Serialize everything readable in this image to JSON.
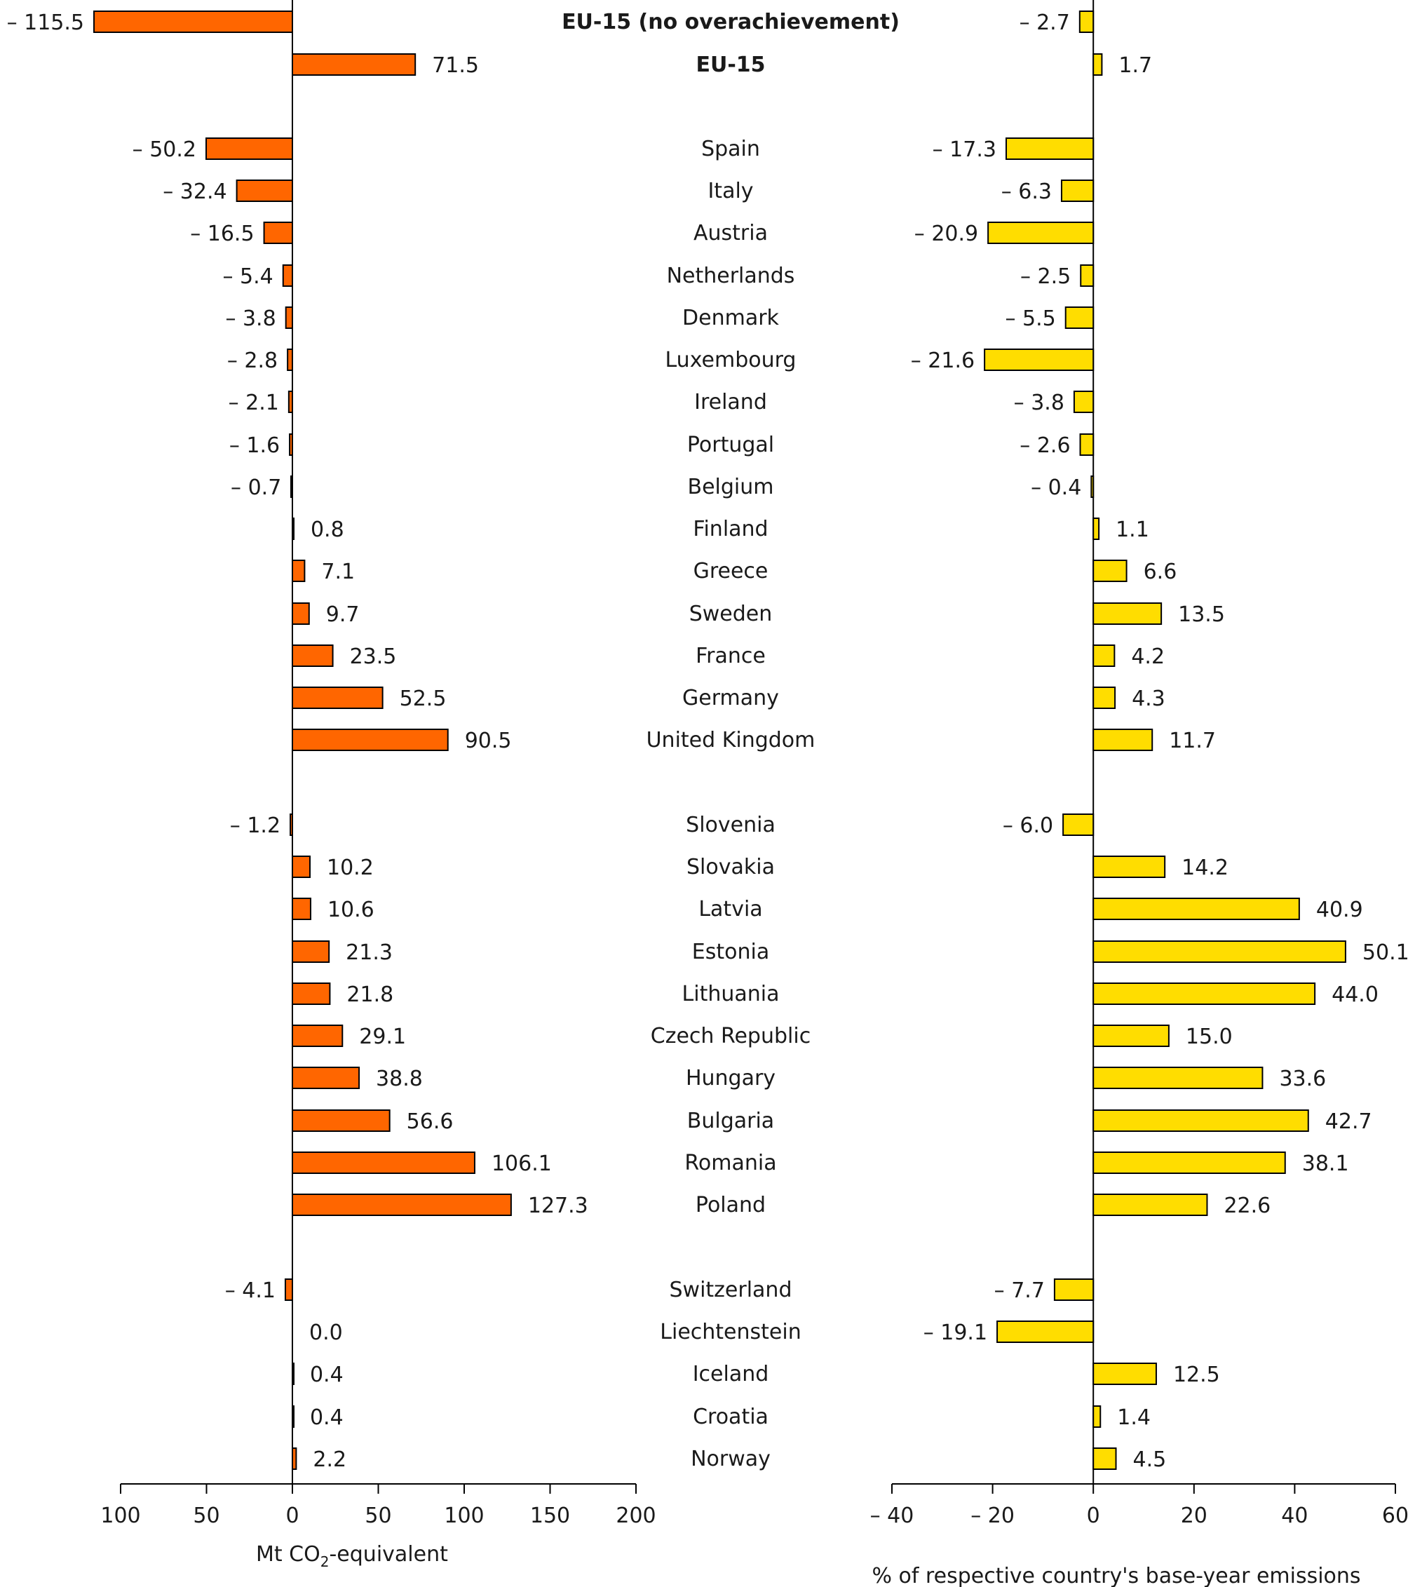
{
  "chart_data": [
    {
      "type": "bar",
      "orientation": "horizontal",
      "xlabel": "Mt CO2-equivalent",
      "xlim": [
        -100,
        200
      ],
      "xticks": [
        -100,
        -50,
        0,
        50,
        100,
        150,
        200
      ],
      "xtick_labels": [
        "100",
        "50",
        "0",
        "50",
        "100",
        "150",
        "200"
      ],
      "bar_color": "#ff6600",
      "values": [
        -115.5,
        71.5,
        -50.2,
        -32.4,
        -16.5,
        -5.4,
        -3.8,
        -2.8,
        -2.1,
        -1.6,
        -0.7,
        0.8,
        7.1,
        9.7,
        23.5,
        52.5,
        90.5,
        -1.2,
        10.2,
        10.6,
        21.3,
        21.8,
        29.1,
        38.8,
        56.6,
        106.1,
        127.3,
        -4.1,
        0.0,
        0.4,
        0.4,
        2.2
      ],
      "value_labels": [
        "– 115.5",
        "71.5",
        "– 50.2",
        "– 32.4",
        "– 16.5",
        "– 5.4",
        "– 3.8",
        "– 2.8",
        "– 2.1",
        "– 1.6",
        "– 0.7",
        "0.8",
        "7.1",
        "9.7",
        "23.5",
        "52.5",
        "90.5",
        "– 1.2",
        "10.2",
        "10.6",
        "21.3",
        "21.8",
        "29.1",
        "38.8",
        "56.6",
        "106.1",
        "127.3",
        "– 4.1",
        "0.0",
        "0.4",
        "0.4",
        "2.2"
      ]
    },
    {
      "type": "bar",
      "orientation": "horizontal",
      "xlabel": "% of respective country's base-year emissions",
      "xlim": [
        -40,
        60
      ],
      "xticks": [
        -40,
        -20,
        0,
        20,
        40,
        60
      ],
      "xtick_labels": [
        "– 40",
        "– 20",
        "0",
        "20",
        "40",
        "60"
      ],
      "bar_color": "#ffdd00",
      "values": [
        -2.7,
        1.7,
        -17.3,
        -6.3,
        -20.9,
        -2.5,
        -5.5,
        -21.6,
        -3.8,
        -2.6,
        -0.4,
        1.1,
        6.6,
        13.5,
        4.2,
        4.3,
        11.7,
        -6.0,
        14.2,
        40.9,
        50.1,
        44.0,
        15.0,
        33.6,
        42.7,
        38.1,
        22.6,
        -7.7,
        -19.1,
        12.5,
        1.4,
        4.5
      ],
      "value_labels": [
        "– 2.7",
        "1.7",
        "– 17.3",
        "– 6.3",
        "– 20.9",
        "– 2.5",
        "– 5.5",
        "– 21.6",
        "– 3.8",
        "– 2.6",
        "– 0.4",
        "1.1",
        "6.6",
        "13.5",
        "4.2",
        "4.3",
        "11.7",
        "– 6.0",
        "14.2",
        "40.9",
        "50.1",
        "44.0",
        "15.0",
        "33.6",
        "42.7",
        "38.1",
        "22.6",
        "– 7.7",
        "– 19.1",
        "12.5",
        "1.4",
        "4.5"
      ]
    }
  ],
  "categories": [
    "EU-15 (no overachievement)",
    "EU-15",
    "Spain",
    "Italy",
    "Austria",
    "Netherlands",
    "Denmark",
    "Luxembourg",
    "Ireland",
    "Portugal",
    "Belgium",
    "Finland",
    "Greece",
    "Sweden",
    "France",
    "Germany",
    "United Kingdom",
    "Slovenia",
    "Slovakia",
    "Latvia",
    "Estonia",
    "Lithuania",
    "Czech Republic",
    "Hungary",
    "Bulgaria",
    "Romania",
    "Poland",
    "Switzerland",
    "Liechtenstein",
    "Iceland",
    "Croatia",
    "Norway"
  ],
  "bold_categories": [
    "EU-15 (no overachievement)",
    "EU-15"
  ],
  "left_axis_title": {
    "main": "Mt CO",
    "sub": "2",
    "rest": "-equivalent"
  },
  "colors": {
    "outline": "#000000",
    "text": "#1a1a1a"
  }
}
